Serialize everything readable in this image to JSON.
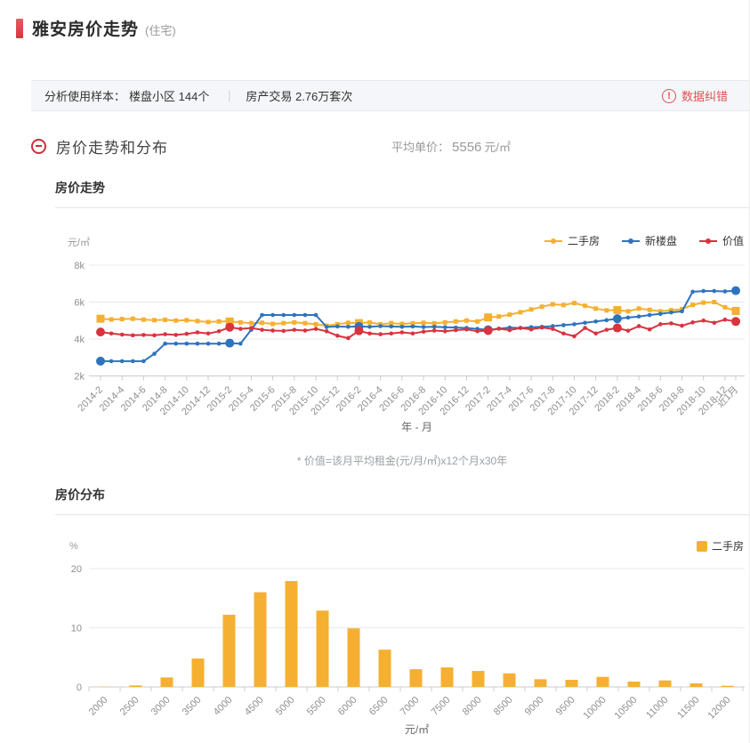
{
  "header": {
    "title": "雅安房价走势",
    "subtitle": "(住宅)",
    "accent_color": "#d93440"
  },
  "info_bar": {
    "label": "分析使用样本：",
    "communities": "楼盘小区 144个",
    "separator": "｜",
    "transactions": "房产交易 2.76万套次",
    "correction_label": "数据纠错",
    "correction_icon": "exclamation-circle-icon",
    "correction_color": "#e25050"
  },
  "section": {
    "title": "房价走势和分布",
    "collapse_icon": "minus-circle-icon",
    "avg_label": "平均单价：",
    "avg_value": "5556",
    "avg_unit": "元/㎡"
  },
  "chart_data": [
    {
      "type": "line",
      "title": "房价走势",
      "y_unit": "元/㎡",
      "x_title": "年 - 月",
      "footnote": "* 价值=该月平均租金(元/月/㎡)x12个月x30年",
      "y_ticks": [
        "8k",
        "6k",
        "4k",
        "2k"
      ],
      "ylim": [
        2,
        8.6
      ],
      "grid": "horizontal-only",
      "legend_position": "top-right",
      "months_count": 60,
      "x_labels": [
        "2014-2",
        "2014-4",
        "2014-6",
        "2014-8",
        "2014-10",
        "2014-12",
        "2015-2",
        "2015-4",
        "2015-6",
        "2015-8",
        "2015-10",
        "2015-12",
        "2016-2",
        "2016-4",
        "2016-6",
        "2016-8",
        "2016-10",
        "2016-12",
        "2017-2",
        "2017-4",
        "2017-6",
        "2017-8",
        "2017-10",
        "2017-12",
        "2018-2",
        "2018-4",
        "2018-6",
        "2018-8",
        "2018-10",
        "2018-12",
        "近1月"
      ],
      "emphasis_indices": [
        0,
        12,
        24,
        36,
        48,
        59
      ],
      "series": [
        {
          "name": "二手房",
          "color": "#f5b031",
          "marker": "square",
          "values": [
            5.1,
            5.06,
            5.08,
            5.1,
            5.05,
            5.02,
            5.04,
            5.0,
            5.02,
            4.97,
            4.92,
            4.95,
            4.95,
            4.9,
            4.86,
            4.88,
            4.82,
            4.86,
            4.9,
            4.86,
            4.8,
            4.72,
            4.8,
            4.88,
            4.86,
            4.9,
            4.8,
            4.86,
            4.82,
            4.85,
            4.88,
            4.85,
            4.9,
            4.95,
            5.0,
            4.95,
            5.17,
            5.22,
            5.32,
            5.45,
            5.6,
            5.75,
            5.88,
            5.84,
            5.95,
            5.8,
            5.65,
            5.55,
            5.57,
            5.5,
            5.65,
            5.58,
            5.5,
            5.56,
            5.62,
            5.85,
            5.97,
            6.0,
            5.72,
            5.52
          ]
        },
        {
          "name": "新楼盘",
          "color": "#2e73be",
          "marker": "circle",
          "values": [
            2.8,
            2.8,
            2.8,
            2.8,
            2.8,
            3.2,
            3.75,
            3.75,
            3.75,
            3.75,
            3.75,
            3.75,
            3.78,
            3.75,
            4.5,
            5.3,
            5.3,
            5.3,
            5.3,
            5.3,
            5.3,
            4.65,
            4.68,
            4.66,
            4.68,
            4.66,
            4.7,
            4.68,
            4.66,
            4.68,
            4.65,
            4.66,
            4.64,
            4.62,
            4.6,
            4.55,
            4.5,
            4.56,
            4.62,
            4.6,
            4.64,
            4.66,
            4.7,
            4.75,
            4.8,
            4.88,
            4.95,
            5.02,
            5.1,
            5.16,
            5.22,
            5.3,
            5.36,
            5.44,
            5.5,
            6.56,
            6.6,
            6.6,
            6.58,
            6.62
          ]
        },
        {
          "name": "价值",
          "color": "#d8333f",
          "marker": "circle",
          "values": [
            4.38,
            4.3,
            4.24,
            4.2,
            4.22,
            4.2,
            4.26,
            4.22,
            4.28,
            4.36,
            4.3,
            4.42,
            4.64,
            4.55,
            4.6,
            4.5,
            4.46,
            4.44,
            4.5,
            4.46,
            4.55,
            4.42,
            4.18,
            4.05,
            4.45,
            4.3,
            4.26,
            4.3,
            4.36,
            4.3,
            4.4,
            4.46,
            4.42,
            4.48,
            4.52,
            4.42,
            4.46,
            4.56,
            4.48,
            4.6,
            4.52,
            4.62,
            4.55,
            4.3,
            4.15,
            4.6,
            4.3,
            4.5,
            4.6,
            4.45,
            4.7,
            4.52,
            4.8,
            4.85,
            4.72,
            4.9,
            5.0,
            4.88,
            5.05,
            4.95
          ]
        }
      ]
    },
    {
      "type": "bar",
      "title": "房价分布",
      "y_unit": "%",
      "x_title": "元/㎡",
      "legend": "二手房",
      "color": "#f5b031",
      "y_ticks": [
        20,
        10,
        0
      ],
      "ylim": [
        0,
        22
      ],
      "grid": "horizontal-only",
      "legend_position": "top-right",
      "categories": [
        "2000",
        "2500",
        "3000",
        "3500",
        "4000",
        "4500",
        "5000",
        "5500",
        "6000",
        "6500",
        "7000",
        "7500",
        "8000",
        "8500",
        "9000",
        "9500",
        "10000",
        "10500",
        "11000",
        "11500",
        "12000"
      ],
      "values": [
        0.05,
        0.25,
        1.6,
        4.8,
        12.2,
        16.0,
        17.9,
        12.9,
        9.9,
        6.3,
        3.0,
        3.3,
        2.7,
        2.3,
        1.3,
        1.2,
        1.7,
        0.9,
        1.1,
        0.6,
        0.2
      ]
    }
  ]
}
